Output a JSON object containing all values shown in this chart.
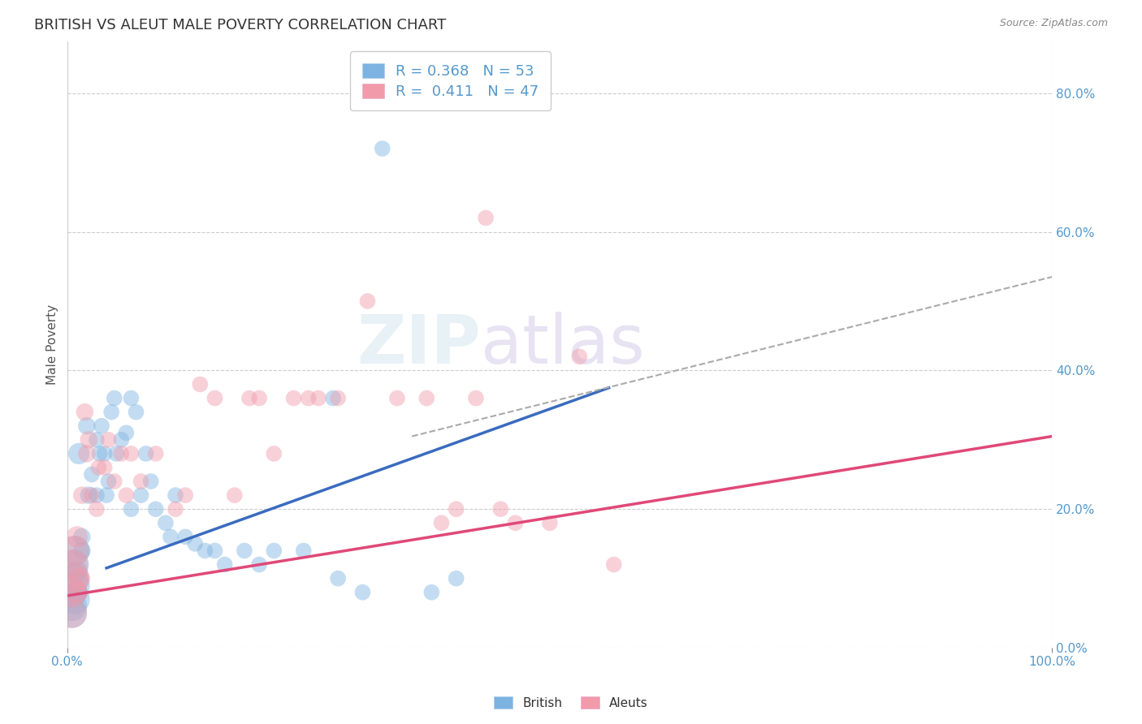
{
  "title": "BRITISH VS ALEUT MALE POVERTY CORRELATION CHART",
  "source_text": "Source: ZipAtlas.com",
  "ylabel": "Male Poverty",
  "xlim": [
    0.0,
    1.0
  ],
  "ylim": [
    0.0,
    0.875
  ],
  "xtick_labels": [
    "0.0%",
    "100.0%"
  ],
  "xtick_positions": [
    0.0,
    1.0
  ],
  "ytick_labels": [
    "0.0%",
    "20.0%",
    "40.0%",
    "60.0%",
    "80.0%"
  ],
  "ytick_positions": [
    0.0,
    0.2,
    0.4,
    0.6,
    0.8
  ],
  "british_color": "#7db3e0",
  "aleut_color": "#f09aaa",
  "british_line_color": "#3a6bbf",
  "aleut_line_color": "#e04878",
  "dashed_line_color": "#aaaaaa",
  "british_R": 0.368,
  "british_N": 53,
  "aleut_R": 0.411,
  "aleut_N": 47,
  "british_scatter": [
    [
      0.005,
      0.08
    ],
    [
      0.005,
      0.06
    ],
    [
      0.005,
      0.05
    ],
    [
      0.007,
      0.12
    ],
    [
      0.007,
      0.1
    ],
    [
      0.008,
      0.14
    ],
    [
      0.008,
      0.07
    ],
    [
      0.008,
      0.09
    ],
    [
      0.01,
      0.11
    ],
    [
      0.01,
      0.08
    ],
    [
      0.012,
      0.28
    ],
    [
      0.015,
      0.14
    ],
    [
      0.015,
      0.16
    ],
    [
      0.02,
      0.32
    ],
    [
      0.022,
      0.22
    ],
    [
      0.025,
      0.25
    ],
    [
      0.03,
      0.22
    ],
    [
      0.03,
      0.3
    ],
    [
      0.033,
      0.28
    ],
    [
      0.035,
      0.32
    ],
    [
      0.038,
      0.28
    ],
    [
      0.04,
      0.22
    ],
    [
      0.042,
      0.24
    ],
    [
      0.045,
      0.34
    ],
    [
      0.048,
      0.36
    ],
    [
      0.05,
      0.28
    ],
    [
      0.055,
      0.3
    ],
    [
      0.06,
      0.31
    ],
    [
      0.065,
      0.36
    ],
    [
      0.065,
      0.2
    ],
    [
      0.07,
      0.34
    ],
    [
      0.075,
      0.22
    ],
    [
      0.08,
      0.28
    ],
    [
      0.085,
      0.24
    ],
    [
      0.09,
      0.2
    ],
    [
      0.1,
      0.18
    ],
    [
      0.105,
      0.16
    ],
    [
      0.11,
      0.22
    ],
    [
      0.12,
      0.16
    ],
    [
      0.13,
      0.15
    ],
    [
      0.14,
      0.14
    ],
    [
      0.15,
      0.14
    ],
    [
      0.16,
      0.12
    ],
    [
      0.18,
      0.14
    ],
    [
      0.195,
      0.12
    ],
    [
      0.21,
      0.14
    ],
    [
      0.24,
      0.14
    ],
    [
      0.27,
      0.36
    ],
    [
      0.275,
      0.1
    ],
    [
      0.3,
      0.08
    ],
    [
      0.32,
      0.72
    ],
    [
      0.37,
      0.08
    ],
    [
      0.395,
      0.1
    ]
  ],
  "aleut_scatter": [
    [
      0.005,
      0.05
    ],
    [
      0.005,
      0.08
    ],
    [
      0.006,
      0.12
    ],
    [
      0.007,
      0.14
    ],
    [
      0.008,
      0.1
    ],
    [
      0.01,
      0.16
    ],
    [
      0.01,
      0.08
    ],
    [
      0.012,
      0.1
    ],
    [
      0.015,
      0.22
    ],
    [
      0.018,
      0.34
    ],
    [
      0.02,
      0.28
    ],
    [
      0.022,
      0.3
    ],
    [
      0.025,
      0.22
    ],
    [
      0.03,
      0.2
    ],
    [
      0.032,
      0.26
    ],
    [
      0.038,
      0.26
    ],
    [
      0.042,
      0.3
    ],
    [
      0.048,
      0.24
    ],
    [
      0.055,
      0.28
    ],
    [
      0.06,
      0.22
    ],
    [
      0.065,
      0.28
    ],
    [
      0.075,
      0.24
    ],
    [
      0.09,
      0.28
    ],
    [
      0.11,
      0.2
    ],
    [
      0.12,
      0.22
    ],
    [
      0.135,
      0.38
    ],
    [
      0.15,
      0.36
    ],
    [
      0.17,
      0.22
    ],
    [
      0.185,
      0.36
    ],
    [
      0.195,
      0.36
    ],
    [
      0.21,
      0.28
    ],
    [
      0.23,
      0.36
    ],
    [
      0.245,
      0.36
    ],
    [
      0.255,
      0.36
    ],
    [
      0.275,
      0.36
    ],
    [
      0.305,
      0.5
    ],
    [
      0.335,
      0.36
    ],
    [
      0.365,
      0.36
    ],
    [
      0.38,
      0.18
    ],
    [
      0.395,
      0.2
    ],
    [
      0.415,
      0.36
    ],
    [
      0.425,
      0.62
    ],
    [
      0.44,
      0.2
    ],
    [
      0.455,
      0.18
    ],
    [
      0.49,
      0.18
    ],
    [
      0.52,
      0.42
    ],
    [
      0.555,
      0.12
    ]
  ],
  "british_line_x": [
    0.04,
    0.55
  ],
  "british_line_y": [
    0.115,
    0.375
  ],
  "aleut_line_x": [
    0.0,
    1.0
  ],
  "aleut_line_y": [
    0.075,
    0.305
  ],
  "dashed_line_x": [
    0.35,
    1.0
  ],
  "dashed_line_y": [
    0.305,
    0.535
  ],
  "marker_size": 200,
  "large_marker_size": 700,
  "marker_alpha": 0.45,
  "background_color": "#ffffff",
  "grid_color": "#cccccc",
  "title_fontsize": 13,
  "label_fontsize": 11,
  "tick_fontsize": 11,
  "legend_fontsize": 13
}
